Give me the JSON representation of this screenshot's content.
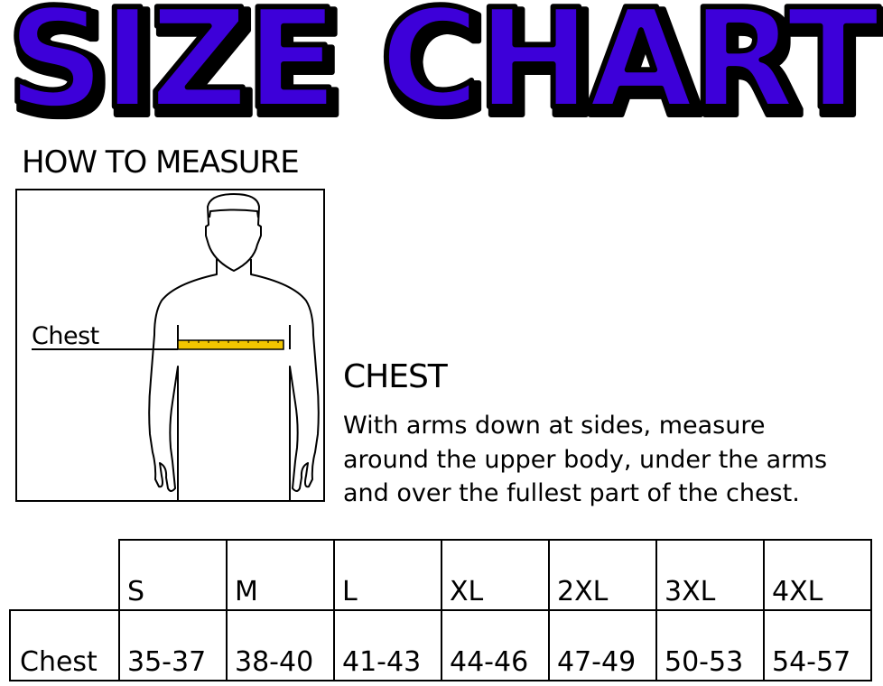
{
  "title": "SIZE CHART",
  "title_color": "#3d00d9",
  "how_to_measure": "HOW TO MEASURE",
  "figure": {
    "label": "Chest",
    "tape_color": "#f2c500"
  },
  "chest_section": {
    "heading": "CHEST",
    "lines": [
      "With arms down at sides, measure",
      "around the upper body, under the arms",
      "and over the fullest part of the chest."
    ]
  },
  "table": {
    "sizes": [
      "S",
      "M",
      "L",
      "XL",
      "2XL",
      "3XL",
      "4XL"
    ],
    "rows": [
      {
        "label": "Chest",
        "values": [
          "35-37",
          "38-40",
          "41-43",
          "44-46",
          "47-49",
          "50-53",
          "54-57"
        ]
      }
    ]
  }
}
